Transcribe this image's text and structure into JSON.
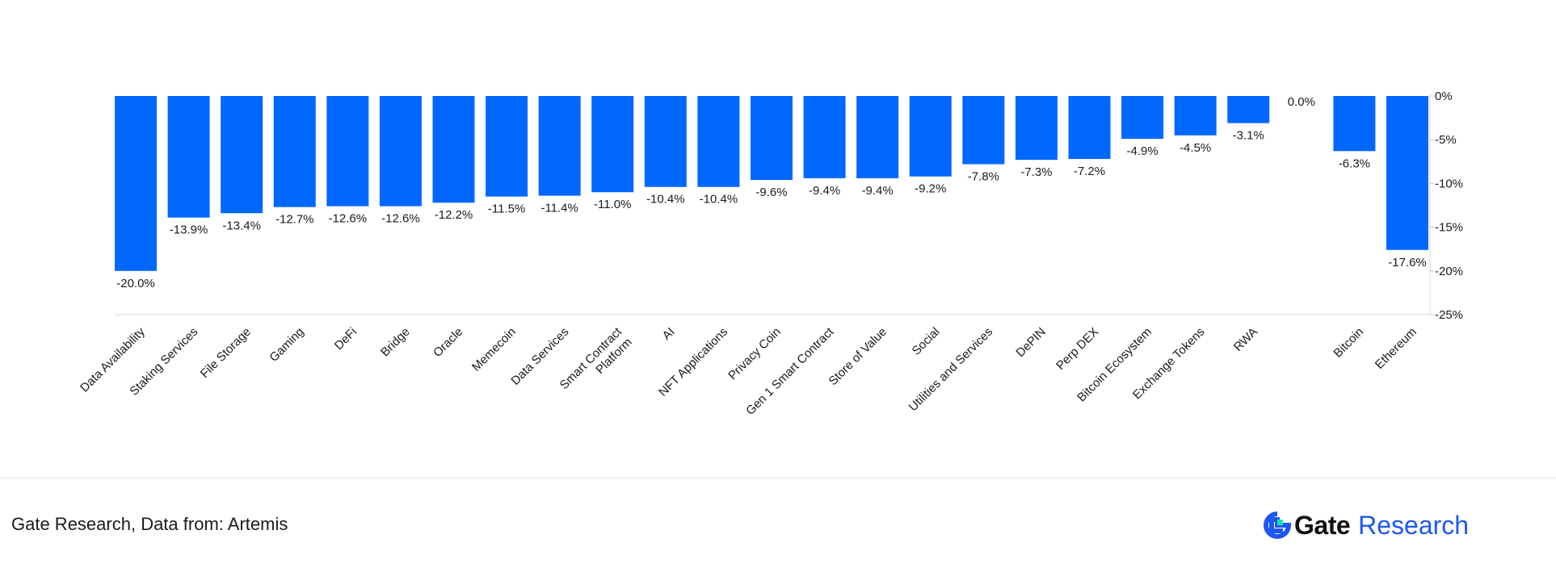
{
  "chart_data": {
    "type": "bar",
    "categories": [
      "Data Availability",
      "Staking Services",
      "File Storage",
      "Gaming",
      "DeFi",
      "Bridge",
      "Oracle",
      "Memecoin",
      "Data Services",
      "Smart Contract Platform",
      "AI",
      "NFT Applications",
      "Privacy Coin",
      "Gen 1 Smart Contract",
      "Store of Value",
      "Social",
      "Utilities and Services",
      "DePIN",
      "Perp DEX",
      "Bitcoin Ecosystem",
      "Exchange Tokens",
      "RWA",
      "",
      "Bitcoin",
      "Ethereum"
    ],
    "values": [
      -20.0,
      -13.9,
      -13.4,
      -12.7,
      -12.6,
      -12.6,
      -12.2,
      -11.5,
      -11.4,
      -11.0,
      -10.4,
      -10.4,
      -9.6,
      -9.4,
      -9.4,
      -9.2,
      -7.8,
      -7.3,
      -7.2,
      -4.9,
      -4.5,
      -3.1,
      0.0,
      -6.3,
      -17.6
    ],
    "value_labels": [
      "-20.0%",
      "-13.9%",
      "-13.4%",
      "-12.7%",
      "-12.6%",
      "-12.6%",
      "-12.2%",
      "-11.5%",
      "-11.4%",
      "-11.0%",
      "-10.4%",
      "-10.4%",
      "-9.6%",
      "-9.4%",
      "-9.4%",
      "-9.2%",
      "-7.8%",
      "-7.3%",
      "-7.2%",
      "-4.9%",
      "-4.5%",
      "-3.1%",
      "0.0%",
      "-6.3%",
      "-17.6%"
    ],
    "yticks": [
      0,
      -5,
      -10,
      -15,
      -20,
      -25
    ],
    "ytick_labels": [
      "0%",
      "-5%",
      "-10%",
      "-15%",
      "-20%",
      "-25%"
    ],
    "ylim": [
      -25,
      0
    ],
    "y_axis_side": "right",
    "grid": false,
    "legend": "none",
    "bar_color": "#0068ff"
  },
  "footer": {
    "source": "Gate Research, Data from: Artemis",
    "brand_name": "Gate",
    "brand_suffix": "Research",
    "brand_color": "#1f57f2",
    "logo_accent": "#17e6a1"
  }
}
